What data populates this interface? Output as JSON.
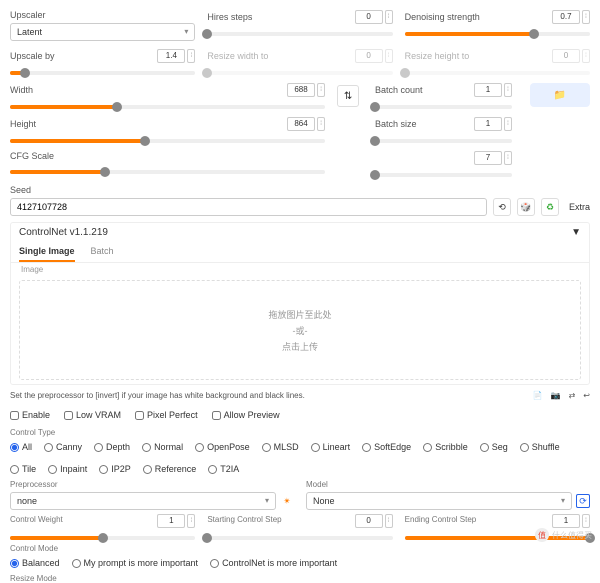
{
  "upscaler": {
    "label": "Upscaler",
    "value": "Latent"
  },
  "hires": {
    "label": "Hires steps",
    "value": "0",
    "slider_pct": 0,
    "dimmed": false
  },
  "denoise": {
    "label": "Denoising strength",
    "value": "0.7",
    "slider_pct": 70
  },
  "upscale_by": {
    "label": "Upscale by",
    "value": "1.4",
    "slider_pct": 8
  },
  "resize_w": {
    "label": "Resize width to",
    "value": "0",
    "slider_pct": 0,
    "dimmed": true
  },
  "resize_h": {
    "label": "Resize height to",
    "value": "0",
    "slider_pct": 0,
    "dimmed": true
  },
  "width": {
    "label": "Width",
    "value": "688",
    "slider_pct": 34
  },
  "height": {
    "label": "Height",
    "value": "864",
    "slider_pct": 43
  },
  "cfg": {
    "label": "CFG Scale",
    "value": "",
    "slider_pct": 30
  },
  "batch_count": {
    "label": "Batch count",
    "value": "1",
    "slider_pct": 0
  },
  "batch_size": {
    "label": "Batch size",
    "value": "1",
    "slider_pct": 0
  },
  "steps_right": {
    "label": "",
    "value": "7",
    "slider_pct": 0
  },
  "seed": {
    "label": "Seed",
    "value": "4127107728",
    "extra": "Extra"
  },
  "controlnet": {
    "title": "ControlNet v1.1.219"
  },
  "tabs": {
    "single": "Single Image",
    "batch": "Batch"
  },
  "img_label": "Image",
  "drop": {
    "l1": "拖放图片至此处",
    "l2": "-或-",
    "l3": "点击上传"
  },
  "note": "Set the preprocessor to [invert] if your image has white background and black lines.",
  "checks": {
    "enable": "Enable",
    "lowvram": "Low VRAM",
    "pixel": "Pixel Perfect",
    "preview": "Allow Preview"
  },
  "control_type": {
    "label": "Control Type",
    "opts": [
      "All",
      "Canny",
      "Depth",
      "Normal",
      "OpenPose",
      "MLSD",
      "Lineart",
      "SoftEdge",
      "Scribble",
      "Seg",
      "Shuffle",
      "Tile",
      "Inpaint",
      "IP2P",
      "Reference",
      "T2IA"
    ]
  },
  "preproc": {
    "label": "Preprocessor",
    "value": "none"
  },
  "model": {
    "label": "Model",
    "value": "None"
  },
  "cweight": {
    "label": "Control Weight",
    "value": "1",
    "slider_pct": 50
  },
  "cstart": {
    "label": "Starting Control Step",
    "value": "0",
    "slider_pct": 0
  },
  "cend": {
    "label": "Ending Control Step",
    "value": "1",
    "slider_pct": 100
  },
  "cmode": {
    "label": "Control Mode",
    "opts": [
      "Balanced",
      "My prompt is more important",
      "ControlNet is more important"
    ]
  },
  "resize_mode": {
    "label": "Resize Mode"
  },
  "colors": {
    "orange": "#ff7c00",
    "gray": "#888"
  },
  "watermark": "什么值得买"
}
